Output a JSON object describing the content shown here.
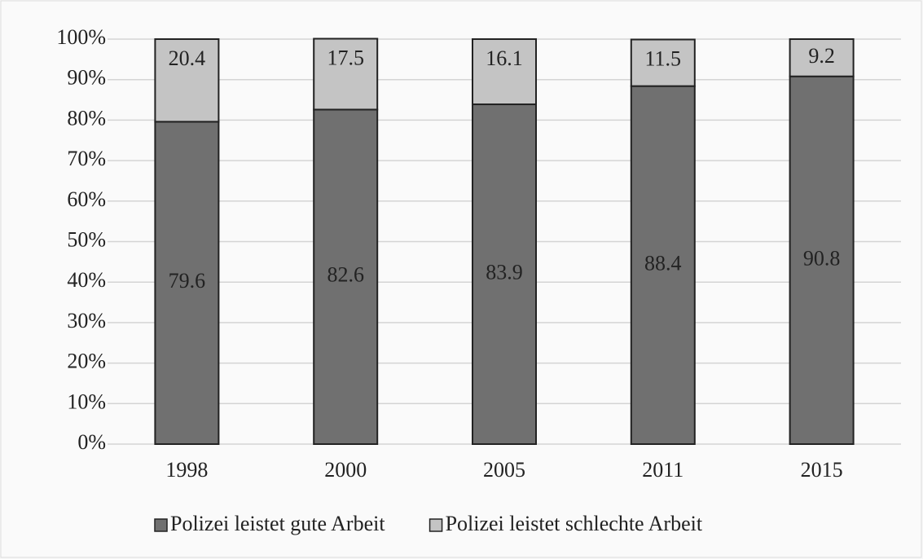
{
  "chart_data": {
    "type": "bar",
    "stacked": true,
    "categories": [
      "1998",
      "2000",
      "2005",
      "2011",
      "2015"
    ],
    "series": [
      {
        "name": "Polizei leistet gute Arbeit",
        "color": "#707070",
        "values": [
          79.6,
          82.6,
          83.9,
          88.4,
          90.8
        ]
      },
      {
        "name": "Polizei leistet schlechte Arbeit",
        "color": "#c4c4c4",
        "values": [
          20.4,
          17.5,
          16.1,
          11.5,
          9.2
        ]
      }
    ],
    "ylim": [
      0,
      100
    ],
    "yticks": [
      {
        "value": 0,
        "label": "0%"
      },
      {
        "value": 10,
        "label": "10%"
      },
      {
        "value": 20,
        "label": "20%"
      },
      {
        "value": 30,
        "label": "30%"
      },
      {
        "value": 40,
        "label": "40%"
      },
      {
        "value": 50,
        "label": "50%"
      },
      {
        "value": 60,
        "label": "60%"
      },
      {
        "value": 70,
        "label": "70%"
      },
      {
        "value": 80,
        "label": "80%"
      },
      {
        "value": 90,
        "label": "90%"
      },
      {
        "value": 100,
        "label": "100%"
      }
    ],
    "grid": true,
    "legend": "bottom"
  }
}
